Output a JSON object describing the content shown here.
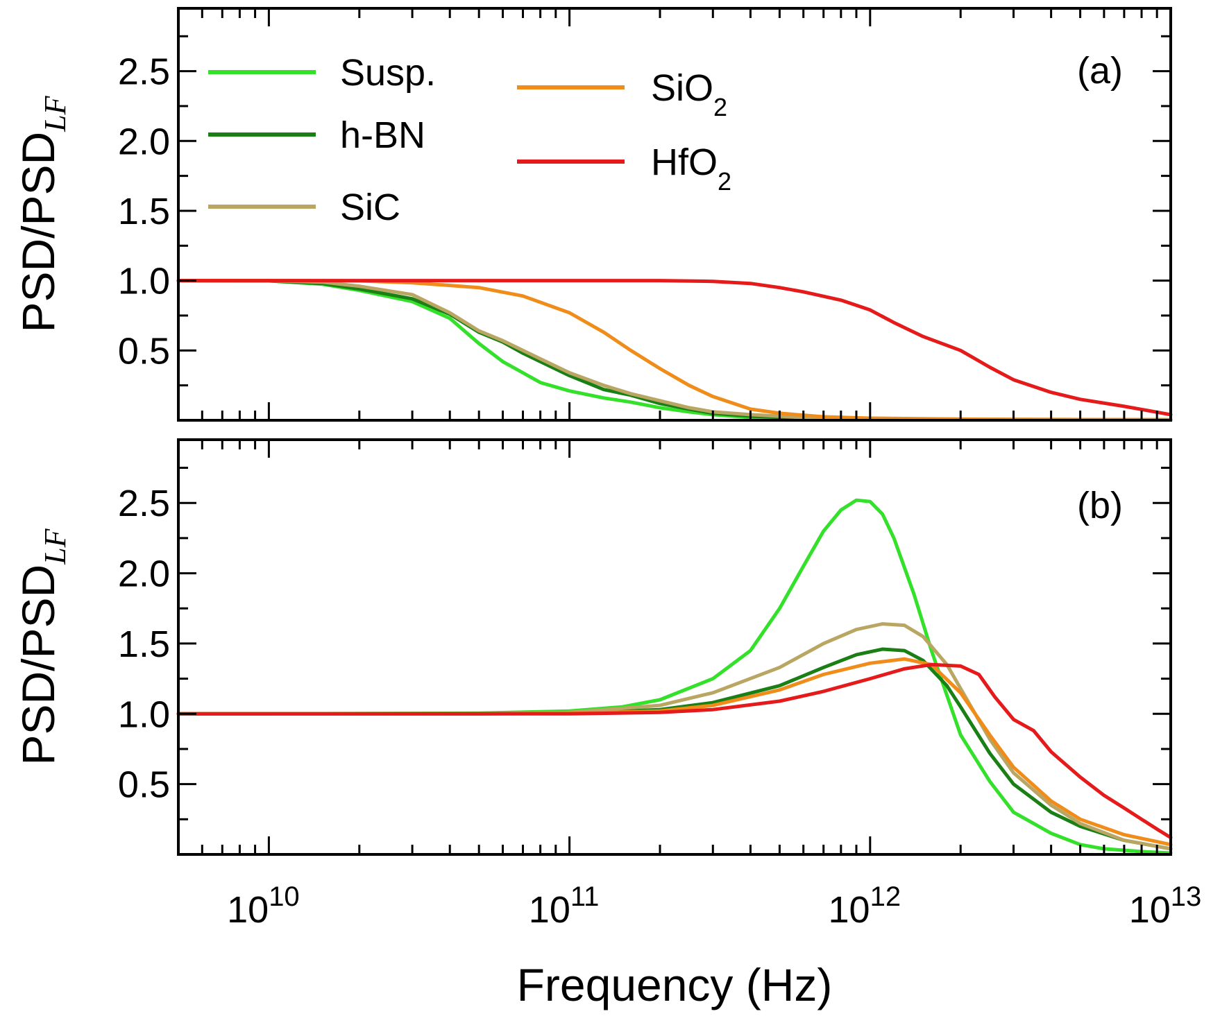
{
  "chart_data": [
    {
      "panel_label": "(a)",
      "type": "line",
      "ylabel_main": "PSD/PSD",
      "ylabel_subscript": "LF",
      "xscale": "log",
      "xlim": [
        5000000000.0,
        10000000000000.0
      ],
      "ylim": [
        0,
        2.95
      ],
      "yticks": [
        0.5,
        1.0,
        1.5,
        2.0,
        2.5
      ],
      "ytick_labels": [
        "0.5",
        "1.0",
        "1.5",
        "2.0",
        "2.5"
      ],
      "legend": [
        {
          "text": "Susp.",
          "sub": ""
        },
        {
          "text": "h-BN",
          "sub": ""
        },
        {
          "text": "SiC",
          "sub": ""
        },
        {
          "text": "SiO",
          "sub": "2"
        },
        {
          "text": "HfO",
          "sub": "2"
        }
      ],
      "series": [
        {
          "name": "Susp.",
          "color": "#33e02a",
          "x": [
            5000000000.0,
            10000000000.0,
            15000000000.0,
            20000000000.0,
            30000000000.0,
            40000000000.0,
            50000000000.0,
            60000000000.0,
            70000000000.0,
            80000000000.0,
            100000000000.0,
            130000000000.0,
            160000000000.0,
            200000000000.0,
            250000000000.0,
            300000000000.0,
            400000000000.0,
            600000000000.0,
            1000000000000.0,
            3000000000000.0,
            10000000000000.0
          ],
          "y": [
            1.0,
            0.998,
            0.975,
            0.93,
            0.85,
            0.73,
            0.55,
            0.42,
            0.34,
            0.27,
            0.21,
            0.16,
            0.13,
            0.09,
            0.06,
            0.04,
            0.02,
            0.01,
            0.005,
            0.003,
            0.003
          ]
        },
        {
          "name": "h-BN",
          "color": "#1a7f14",
          "x": [
            5000000000.0,
            10000000000.0,
            15000000000.0,
            20000000000.0,
            30000000000.0,
            40000000000.0,
            50000000000.0,
            60000000000.0,
            70000000000.0,
            80000000000.0,
            100000000000.0,
            130000000000.0,
            160000000000.0,
            200000000000.0,
            250000000000.0,
            300000000000.0,
            400000000000.0,
            600000000000.0,
            1000000000000.0,
            3000000000000.0,
            10000000000000.0
          ],
          "y": [
            1.0,
            0.998,
            0.98,
            0.94,
            0.87,
            0.76,
            0.63,
            0.56,
            0.48,
            0.42,
            0.32,
            0.22,
            0.18,
            0.12,
            0.08,
            0.05,
            0.03,
            0.015,
            0.008,
            0.004,
            0.003
          ]
        },
        {
          "name": "SiC",
          "color": "#b9a662",
          "x": [
            5000000000.0,
            10000000000.0,
            15000000000.0,
            20000000000.0,
            30000000000.0,
            40000000000.0,
            50000000000.0,
            60000000000.0,
            70000000000.0,
            80000000000.0,
            100000000000.0,
            130000000000.0,
            160000000000.0,
            200000000000.0,
            250000000000.0,
            300000000000.0,
            400000000000.0,
            600000000000.0,
            1000000000000.0,
            3000000000000.0,
            10000000000000.0
          ],
          "y": [
            1.0,
            0.999,
            0.99,
            0.96,
            0.9,
            0.77,
            0.64,
            0.57,
            0.5,
            0.44,
            0.34,
            0.25,
            0.19,
            0.14,
            0.09,
            0.06,
            0.04,
            0.02,
            0.012,
            0.006,
            0.004
          ]
        },
        {
          "name": "SiO₂",
          "color": "#f08c1a",
          "x": [
            5000000000.0,
            10000000000.0,
            20000000000.0,
            30000000000.0,
            50000000000.0,
            70000000000.0,
            100000000000.0,
            130000000000.0,
            160000000000.0,
            200000000000.0,
            250000000000.0,
            300000000000.0,
            400000000000.0,
            500000000000.0,
            700000000000.0,
            1000000000000.0,
            2000000000000.0,
            5000000000000.0,
            10000000000000.0
          ],
          "y": [
            1.0,
            1.0,
            0.998,
            0.985,
            0.95,
            0.89,
            0.77,
            0.63,
            0.5,
            0.37,
            0.25,
            0.17,
            0.08,
            0.05,
            0.025,
            0.015,
            0.008,
            0.005,
            0.004
          ]
        },
        {
          "name": "HfO₂",
          "color": "#e51a1a",
          "x": [
            5000000000.0,
            10000000000.0,
            50000000000.0,
            100000000000.0,
            200000000000.0,
            300000000000.0,
            400000000000.0,
            500000000000.0,
            600000000000.0,
            800000000000.0,
            1000000000000.0,
            1200000000000.0,
            1500000000000.0,
            2000000000000.0,
            2500000000000.0,
            3000000000000.0,
            4000000000000.0,
            5000000000000.0,
            7000000000000.0,
            10000000000000.0
          ],
          "y": [
            1.0,
            1.0,
            1.0,
            1.0,
            1.0,
            0.995,
            0.98,
            0.95,
            0.92,
            0.86,
            0.79,
            0.7,
            0.6,
            0.5,
            0.38,
            0.29,
            0.2,
            0.15,
            0.1,
            0.04
          ]
        }
      ]
    },
    {
      "panel_label": "(b)",
      "type": "line",
      "ylabel_main": "PSD/PSD",
      "ylabel_subscript": "LF",
      "xlabel": "Frequency (Hz)",
      "xscale": "log",
      "xlim": [
        5000000000.0,
        10000000000000.0
      ],
      "ylim": [
        0,
        2.95
      ],
      "yticks": [
        0.5,
        1.0,
        1.5,
        2.0,
        2.5
      ],
      "ytick_labels": [
        "0.5",
        "1.0",
        "1.5",
        "2.0",
        "2.5"
      ],
      "xtick_labels": [
        {
          "base": "10",
          "exp": "10",
          "value": 10000000000.0
        },
        {
          "base": "10",
          "exp": "11",
          "value": 100000000000.0
        },
        {
          "base": "10",
          "exp": "12",
          "value": 1000000000000.0
        },
        {
          "base": "10",
          "exp": "13",
          "value": 10000000000000.0
        }
      ],
      "series": [
        {
          "name": "Susp.",
          "color": "#33e02a",
          "x": [
            5000000000.0,
            10000000000.0,
            50000000000.0,
            100000000000.0,
            150000000000.0,
            200000000000.0,
            300000000000.0,
            400000000000.0,
            500000000000.0,
            600000000000.0,
            700000000000.0,
            800000000000.0,
            900000000000.0,
            1000000000000.0,
            1100000000000.0,
            1200000000000.0,
            1400000000000.0,
            1600000000000.0,
            2000000000000.0,
            2500000000000.0,
            3000000000000.0,
            4000000000000.0,
            5000000000000.0,
            6000000000000.0,
            8000000000000.0,
            10000000000000.0
          ],
          "y": [
            1.0,
            1.0,
            1.005,
            1.02,
            1.05,
            1.1,
            1.25,
            1.45,
            1.75,
            2.05,
            2.3,
            2.45,
            2.52,
            2.51,
            2.42,
            2.25,
            1.85,
            1.45,
            0.85,
            0.52,
            0.3,
            0.15,
            0.07,
            0.04,
            0.02,
            0.01
          ]
        },
        {
          "name": "h-BN",
          "color": "#1a7f14",
          "x": [
            5000000000.0,
            10000000000.0,
            50000000000.0,
            100000000000.0,
            200000000000.0,
            300000000000.0,
            500000000000.0,
            700000000000.0,
            900000000000.0,
            1100000000000.0,
            1300000000000.0,
            1500000000000.0,
            1800000000000.0,
            2000000000000.0,
            2500000000000.0,
            3000000000000.0,
            4000000000000.0,
            5000000000000.0,
            7000000000000.0,
            10000000000000.0
          ],
          "y": [
            1.0,
            1.0,
            1.0,
            1.005,
            1.03,
            1.08,
            1.2,
            1.33,
            1.42,
            1.46,
            1.45,
            1.38,
            1.2,
            1.05,
            0.72,
            0.5,
            0.3,
            0.2,
            0.1,
            0.04
          ]
        },
        {
          "name": "SiC",
          "color": "#b9a662",
          "x": [
            5000000000.0,
            10000000000.0,
            50000000000.0,
            100000000000.0,
            200000000000.0,
            300000000000.0,
            500000000000.0,
            700000000000.0,
            900000000000.0,
            1100000000000.0,
            1300000000000.0,
            1500000000000.0,
            1800000000000.0,
            2000000000000.0,
            2500000000000.0,
            3000000000000.0,
            4000000000000.0,
            5000000000000.0,
            7000000000000.0,
            10000000000000.0
          ],
          "y": [
            1.0,
            1.0,
            1.0,
            1.01,
            1.06,
            1.15,
            1.33,
            1.5,
            1.6,
            1.64,
            1.63,
            1.55,
            1.35,
            1.18,
            0.82,
            0.58,
            0.35,
            0.22,
            0.1,
            0.04
          ]
        },
        {
          "name": "SiO₂",
          "color": "#f08c1a",
          "x": [
            5000000000.0,
            10000000000.0,
            50000000000.0,
            100000000000.0,
            200000000000.0,
            300000000000.0,
            500000000000.0,
            700000000000.0,
            1000000000000.0,
            1300000000000.0,
            1600000000000.0,
            2000000000000.0,
            2500000000000.0,
            3000000000000.0,
            4000000000000.0,
            5000000000000.0,
            7000000000000.0,
            10000000000000.0
          ],
          "y": [
            1.0,
            1.0,
            1.0,
            1.003,
            1.02,
            1.06,
            1.17,
            1.28,
            1.36,
            1.39,
            1.35,
            1.15,
            0.85,
            0.62,
            0.38,
            0.25,
            0.14,
            0.07
          ]
        },
        {
          "name": "HfO₂",
          "color": "#e51a1a",
          "x": [
            5000000000.0,
            10000000000.0,
            50000000000.0,
            100000000000.0,
            200000000000.0,
            300000000000.0,
            500000000000.0,
            700000000000.0,
            1000000000000.0,
            1300000000000.0,
            1600000000000.0,
            2000000000000.0,
            2300000000000.0,
            2600000000000.0,
            3000000000000.0,
            3500000000000.0,
            4000000000000.0,
            5000000000000.0,
            6000000000000.0,
            7000000000000.0,
            8000000000000.0,
            9000000000000.0,
            10000000000000.0
          ],
          "y": [
            1.0,
            1.0,
            1.0,
            1.0,
            1.01,
            1.03,
            1.09,
            1.16,
            1.25,
            1.32,
            1.35,
            1.34,
            1.28,
            1.12,
            0.96,
            0.88,
            0.73,
            0.55,
            0.42,
            0.33,
            0.25,
            0.18,
            0.12
          ]
        }
      ]
    }
  ]
}
